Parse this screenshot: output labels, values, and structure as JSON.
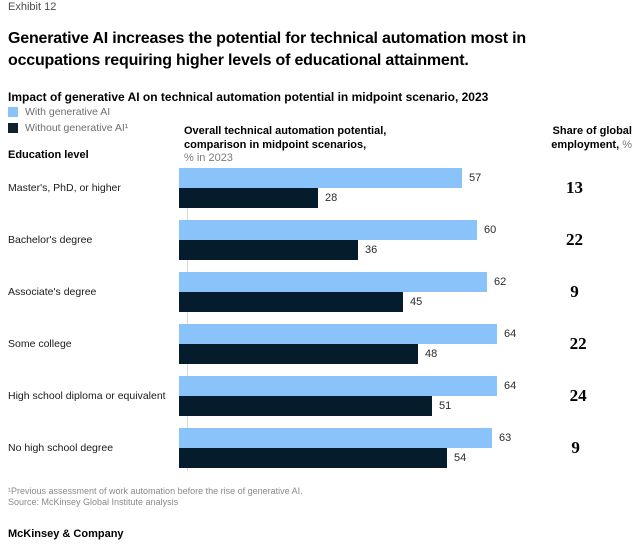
{
  "exhibit_label": "Exhibit 12",
  "title_line1": "Generative AI increases the potential for technical automation most in",
  "title_line2": "occupations requiring higher levels of educational attainment.",
  "subtitle": "Impact of generative AI on technical automation potential in midpoint scenario, 2023",
  "legend": [
    {
      "label": "With generative AI",
      "color": "#8AC3F9"
    },
    {
      "label": "Without generative AI¹",
      "color": "#10202c"
    }
  ],
  "columns": {
    "education_header": "Education level",
    "chart_header_line1": "Overall technical automation potential,",
    "chart_header_line2": "comparison in midpoint scenarios,",
    "chart_header_unit": "% in 2023",
    "share_header_line1": "Share of global",
    "share_header_line2": "employment,",
    "share_header_unit": " %"
  },
  "chart_data": {
    "type": "bar",
    "orientation": "horizontal",
    "title": "Impact of generative AI on technical automation potential in midpoint scenario, 2023",
    "xlabel": "% in 2023",
    "xlim": [
      0,
      64
    ],
    "grid": false,
    "legend_position": "top-left",
    "categories": [
      "Master's, PhD, or higher",
      "Bachelor's degree",
      "Associate's degree",
      "Some college",
      "High school diploma or equivalent",
      "No high school degree"
    ],
    "series": [
      {
        "name": "With generative AI",
        "color": "#8AC3F9",
        "values": [
          57,
          60,
          62,
          64,
          64,
          63
        ]
      },
      {
        "name": "Without generative AI",
        "color": "#051C2C",
        "values": [
          28,
          36,
          45,
          48,
          51,
          54
        ]
      }
    ],
    "share_of_global_employment_pct": [
      13,
      22,
      9,
      22,
      24,
      9
    ]
  },
  "footnotes": [
    "¹Previous assessment of work automation before the rise of generative AI.",
    "Source: McKinsey Global Institute analysis"
  ],
  "brand": "McKinsey & Company"
}
